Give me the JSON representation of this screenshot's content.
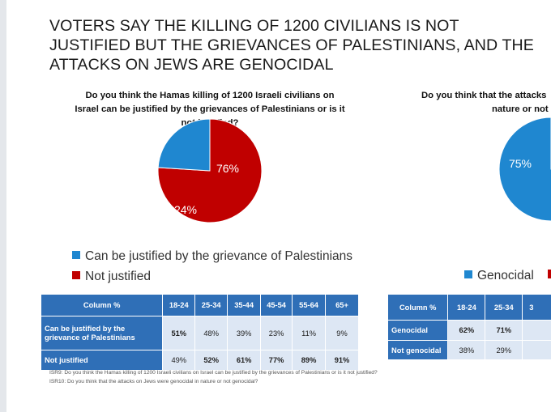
{
  "title": "VOTERS SAY THE KILLING OF 1200 CIVILIANS IS NOT JUSTIFIED BUT THE GRIEVANCES OF PALESTINIANS, AND THE ATTACKS ON JEWS ARE GENOCIDAL",
  "chart_data": [
    {
      "type": "pie",
      "title": "Do you think the Hamas killing of 1200 Israeli civilians on Israel can be justified by the grievances of Palestinians or is it not justified?",
      "slices": [
        {
          "name": "Can be justified by the grievance of Palestinians",
          "value": 24,
          "label": "24%",
          "color": "#1f87d0"
        },
        {
          "name": "Not justified",
          "value": 76,
          "label": "76%",
          "color": "#c00000"
        }
      ],
      "legend": "bottom-left"
    },
    {
      "type": "pie",
      "title_line1": "Do you think that the attacks",
      "title_line2": "nature or not",
      "slices": [
        {
          "name": "Genocidal",
          "value": 75,
          "label": "75%",
          "color": "#1f87d0"
        }
      ],
      "legend": "bottom"
    },
    {
      "type": "table",
      "header": [
        "Column %",
        "18-24",
        "25-34",
        "35-44",
        "45-54",
        "55-64",
        "65+"
      ],
      "rows": [
        {
          "label": "Can be justified by the grievance of Palestinians",
          "cells": [
            {
              "v": "51%",
              "b": true
            },
            {
              "v": "48%",
              "b": false
            },
            {
              "v": "39%",
              "b": false
            },
            {
              "v": "23%",
              "b": false
            },
            {
              "v": "11%",
              "b": false
            },
            {
              "v": "9%",
              "b": false
            }
          ]
        },
        {
          "label": "Not justified",
          "cells": [
            {
              "v": "49%",
              "b": false
            },
            {
              "v": "52%",
              "b": true
            },
            {
              "v": "61%",
              "b": true
            },
            {
              "v": "77%",
              "b": true
            },
            {
              "v": "89%",
              "b": true
            },
            {
              "v": "91%",
              "b": true
            }
          ]
        }
      ]
    },
    {
      "type": "table",
      "header": [
        "Column %",
        "18-24",
        "25-34",
        "3"
      ],
      "rows": [
        {
          "label": "Genocidal",
          "cells": [
            {
              "v": "62%",
              "b": true
            },
            {
              "v": "71%",
              "b": true
            },
            {
              "v": "",
              "b": false
            }
          ]
        },
        {
          "label": "Not genocidal",
          "cells": [
            {
              "v": "38%",
              "b": false
            },
            {
              "v": "29%",
              "b": false
            },
            {
              "v": "",
              "b": false
            }
          ]
        }
      ]
    }
  ],
  "footnotes": [
    "ISR9: Do you think the Hamas killing of 1200 Israeli civilians on Israel can be justified by the grievances of Palestinians or is it not justified?",
    "ISR10: Do you think that the attacks on Jews were genocidal in nature or not genocidal?"
  ]
}
